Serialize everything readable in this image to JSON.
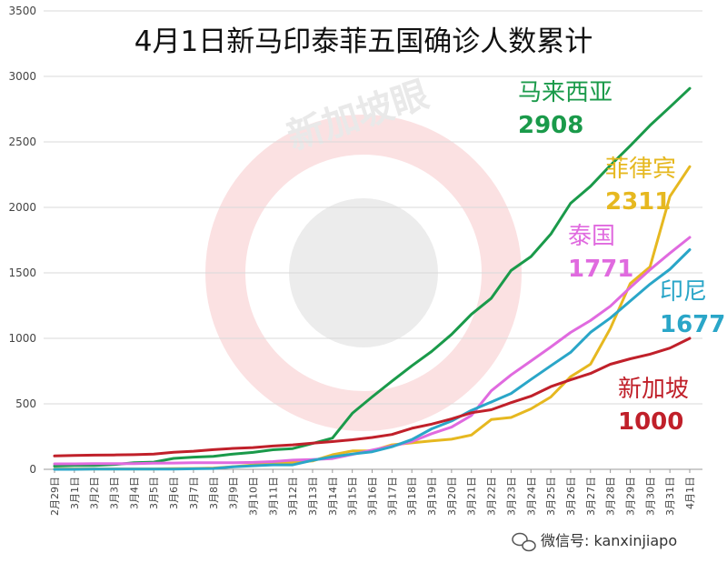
{
  "chart_data": {
    "type": "line",
    "title": "4月1日新马印泰菲五国确诊人数累计",
    "xlabel": "",
    "ylabel": "",
    "ylim": [
      0,
      3500
    ],
    "y_ticks": [
      0,
      500,
      1000,
      1500,
      2000,
      2500,
      3000,
      3500
    ],
    "grid": true,
    "x": [
      "2月29日",
      "3月1日",
      "3月2日",
      "3月3日",
      "3月4日",
      "3月5日",
      "3月6日",
      "3月7日",
      "3月8日",
      "3月9日",
      "3月10日",
      "3月11日",
      "3月12日",
      "3月13日",
      "3月14日",
      "3月15日",
      "3月16日",
      "3月17日",
      "3月18日",
      "3月19日",
      "3月20日",
      "3月21日",
      "3月22日",
      "3月23日",
      "3月24日",
      "3月25日",
      "3月26日",
      "3月27日",
      "3月28日",
      "3月29日",
      "3月30日",
      "3月31日",
      "4月1日"
    ],
    "series": [
      {
        "name": "马来西亚",
        "label_value": "2908",
        "color": "#1a9a4a",
        "values": [
          25,
          29,
          29,
          36,
          50,
          55,
          83,
          93,
          99,
          117,
          129,
          149,
          158,
          197,
          238,
          428,
          553,
          673,
          790,
          900,
          1030,
          1183,
          1306,
          1518,
          1624,
          1796,
          2031,
          2161,
          2320,
          2470,
          2626,
          2766,
          2908
        ]
      },
      {
        "name": "菲律宾",
        "label_value": "2311",
        "color": "#e6b820",
        "values": [
          3,
          3,
          3,
          3,
          3,
          3,
          5,
          6,
          10,
          20,
          33,
          49,
          52,
          64,
          111,
          140,
          142,
          187,
          202,
          217,
          230,
          262,
          380,
          396,
          462,
          552,
          707,
          803,
          1075,
          1418,
          1546,
          2084,
          2311
        ]
      },
      {
        "name": "泰国",
        "label_value": "1771",
        "color": "#e06adf",
        "values": [
          42,
          42,
          43,
          43,
          43,
          47,
          48,
          50,
          50,
          50,
          53,
          59,
          70,
          75,
          82,
          114,
          147,
          177,
          212,
          272,
          322,
          411,
          599,
          721,
          827,
          934,
          1045,
          1136,
          1245,
          1388,
          1524,
          1651,
          1771
        ]
      },
      {
        "name": "印尼",
        "label_value": "1677",
        "color": "#2aa6c8",
        "values": [
          0,
          0,
          2,
          2,
          2,
          2,
          2,
          4,
          6,
          19,
          27,
          34,
          34,
          69,
          96,
          117,
          134,
          172,
          227,
          309,
          369,
          450,
          514,
          579,
          686,
          790,
          893,
          1046,
          1155,
          1285,
          1414,
          1528,
          1677
        ]
      },
      {
        "name": "新加坡",
        "label_value": "1000",
        "color": "#c0202a",
        "values": [
          102,
          106,
          108,
          110,
          112,
          117,
          130,
          138,
          150,
          160,
          166,
          178,
          187,
          200,
          212,
          226,
          243,
          266,
          313,
          345,
          385,
          432,
          455,
          509,
          558,
          631,
          683,
          732,
          802,
          844,
          879,
          926,
          1000
        ]
      }
    ]
  },
  "watermark": "新加坡眼",
  "credit": "微信号: kanxinjiapo"
}
